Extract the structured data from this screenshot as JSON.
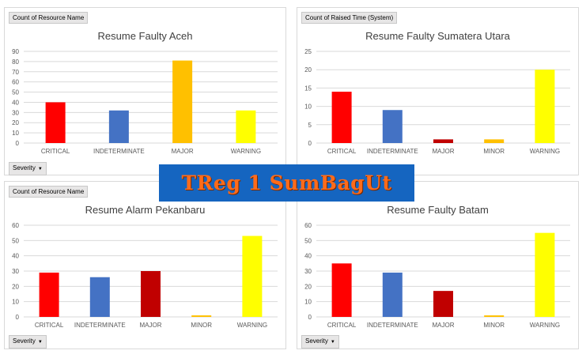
{
  "banner": {
    "text": "TReg 1 SumBagUt"
  },
  "severity_label": "Severity",
  "chart_data": [
    {
      "type": "bar",
      "field_tag": "Count of Resource Name",
      "title": "Resume Faulty Aceh",
      "categories": [
        "CRITICAL",
        "INDETERMINATE",
        "MAJOR",
        "WARNING"
      ],
      "values": [
        40,
        32,
        81,
        32
      ],
      "colors": [
        "#ff0000",
        "#4472c4",
        "#ffc000",
        "#ffff00"
      ],
      "ylim": [
        0,
        90
      ],
      "yticks": [
        0,
        10,
        20,
        30,
        40,
        50,
        60,
        70,
        80,
        90
      ],
      "grid": true
    },
    {
      "type": "bar",
      "field_tag": "Count of Raised Time  (System)",
      "title": "Resume Faulty Sumatera Utara",
      "categories": [
        "CRITICAL",
        "INDETERMINATE",
        "MAJOR",
        "MINOR",
        "WARNING"
      ],
      "values": [
        14,
        9,
        1,
        1,
        20
      ],
      "colors": [
        "#ff0000",
        "#4472c4",
        "#c00000",
        "#ffc000",
        "#ffff00"
      ],
      "ylim": [
        0,
        25
      ],
      "yticks": [
        0,
        5,
        10,
        15,
        20,
        25
      ],
      "grid": true
    },
    {
      "type": "bar",
      "field_tag": "Count of Resource Name",
      "title": "Resume Alarm Pekanbaru",
      "categories": [
        "CRITICAL",
        "INDETERMINATE",
        "MAJOR",
        "MINOR",
        "WARNING"
      ],
      "values": [
        29,
        26,
        30,
        1,
        53
      ],
      "colors": [
        "#ff0000",
        "#4472c4",
        "#c00000",
        "#ffc000",
        "#ffff00"
      ],
      "ylim": [
        0,
        60
      ],
      "yticks": [
        0,
        10,
        20,
        30,
        40,
        50,
        60
      ],
      "grid": true
    },
    {
      "type": "bar",
      "title": "Resume Faulty Batam",
      "categories": [
        "CRITICAL",
        "INDETERMINATE",
        "MAJOR",
        "MINOR",
        "WARNING"
      ],
      "values": [
        35,
        29,
        17,
        1,
        55
      ],
      "colors": [
        "#ff0000",
        "#4472c4",
        "#c00000",
        "#ffc000",
        "#ffff00"
      ],
      "ylim": [
        0,
        60
      ],
      "yticks": [
        0,
        10,
        20,
        30,
        40,
        50,
        60
      ],
      "grid": true
    }
  ]
}
